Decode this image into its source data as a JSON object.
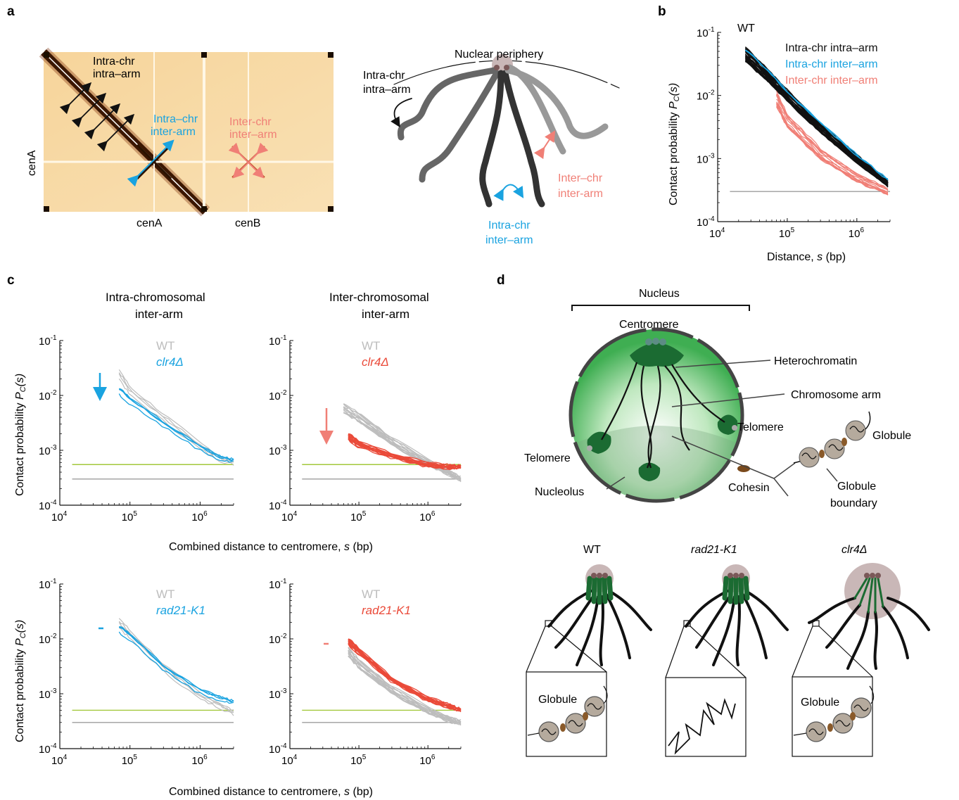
{
  "panels": {
    "a": {
      "label": "a",
      "heatmap": {
        "intra_intra": [
          "Intra-chr",
          "intra–arm"
        ],
        "intra_inter": [
          "Intra–chr",
          "inter-arm"
        ],
        "inter_inter": [
          "Inter-chr",
          "inter–arm"
        ],
        "xlabel_a": "cenA",
        "xlabel_b": "cenB",
        "ylabel": "cenA"
      },
      "schematic": {
        "periphery": "Nuclear periphery",
        "intra_intra": [
          "Intra-chr",
          "intra–arm"
        ],
        "intra_inter": [
          "Intra-chr",
          "inter–arm"
        ],
        "inter_inter": [
          "Inter–chr",
          "inter-arm"
        ]
      }
    },
    "b": {
      "label": "b",
      "strain": "WT",
      "legend": [
        "Intra-chr intra–arm",
        "Intra-chr inter–arm",
        "Inter-chr inter–arm"
      ],
      "ylabel": "Contact probability",
      "ylabel_sym": "P",
      "ylabel_sub": "C",
      "ylabel_arg": "(s)",
      "xlabel": "Distance,",
      "xlabel_sym": "s",
      "xlabel_unit": "(bp)",
      "yticks": [
        "10",
        "10",
        "10",
        "10"
      ],
      "yexp": [
        "-1",
        "-2",
        "-3",
        "-4"
      ],
      "xticks": [
        "10",
        "10",
        "10"
      ],
      "xexp": [
        "4",
        "5",
        "6"
      ]
    },
    "c": {
      "label": "c",
      "col1": [
        "Intra-chromosomal",
        "inter-arm"
      ],
      "col2": [
        "Inter-chromosomal",
        "inter-arm"
      ],
      "ylabel": "Contact probability",
      "ylabel_sym": "P",
      "ylabel_sub": "C",
      "ylabel_arg": "(s)",
      "xlabel": "Combined distance to centromere,",
      "xlabel_sym": "s",
      "xlabel_unit": "(bp)",
      "wt": "WT",
      "mut1": "clr4Δ",
      "mut2": "rad21-K1",
      "yexp": [
        "-1",
        "-2",
        "-3",
        "-4"
      ],
      "xexp": [
        "4",
        "5",
        "6"
      ],
      "tick_base": "10"
    },
    "d": {
      "label": "d",
      "nucleus": "Nucleus",
      "centromere": "Centromere",
      "heterochromatin": "Heterochromatin",
      "chromosome_arm": "Chromosome arm",
      "telomere1": "Telomere",
      "telomere2": "Telomere",
      "globule": "Globule",
      "nucleolus": "Nucleolus",
      "cohesin": "Cohesin",
      "globule_boundary": [
        "Globule",
        "boundary"
      ],
      "strains": [
        "WT",
        "rad21-K1",
        "clr4Δ"
      ],
      "inset_globule": "Globule"
    }
  },
  "colors": {
    "black": "#111111",
    "blue": "#1aa3e0",
    "salmon": "#f07f76",
    "red": "#ea4a39",
    "grey": "#bdbdbd",
    "green": "#a3c83c",
    "darkgreen": "#1b6b32"
  },
  "chart_data": [
    {
      "type": "line",
      "panel": "b",
      "title": "WT",
      "xscale": "log",
      "yscale": "log",
      "xlim": [
        10000,
        3000000
      ],
      "ylim": [
        0.0001,
        0.1
      ],
      "series": [
        {
          "name": "Intra-chr intra–arm",
          "x": [
            25000,
            50000,
            100000,
            300000,
            1000000,
            2800000
          ],
          "y": [
            0.045,
            0.022,
            0.01,
            0.003,
            0.001,
            0.0004
          ]
        },
        {
          "name": "Intra-chr inter–arm",
          "x": [
            25000,
            50000,
            100000,
            300000,
            1000000,
            2800000
          ],
          "y": [
            0.05,
            0.025,
            0.011,
            0.0035,
            0.0011,
            0.00045
          ]
        },
        {
          "name": "Inter-chr inter–arm",
          "x": [
            70000,
            100000,
            300000,
            1000000,
            2800000
          ],
          "y": [
            0.009,
            0.004,
            0.0012,
            0.0005,
            0.0003
          ]
        }
      ],
      "baseline": 0.0003
    },
    {
      "type": "line",
      "panel": "c-intra-clr4",
      "xscale": "log",
      "yscale": "log",
      "xlim": [
        10000,
        3000000
      ],
      "ylim": [
        0.0001,
        0.1
      ],
      "series": [
        {
          "name": "WT",
          "x": [
            70000,
            100000,
            300000,
            1000000,
            2000000,
            3000000
          ],
          "y": [
            0.025,
            0.012,
            0.004,
            0.0012,
            0.0007,
            0.0006
          ]
        },
        {
          "name": "clr4Δ",
          "x": [
            70000,
            100000,
            300000,
            1000000,
            2000000,
            3000000
          ],
          "y": [
            0.012,
            0.008,
            0.003,
            0.0011,
            0.0007,
            0.00065
          ]
        }
      ],
      "baselines": [
        0.00055,
        0.0003
      ]
    },
    {
      "type": "line",
      "panel": "c-inter-clr4",
      "xscale": "log",
      "yscale": "log",
      "xlim": [
        10000,
        3000000
      ],
      "ylim": [
        0.0001,
        0.1
      ],
      "series": [
        {
          "name": "WT",
          "x": [
            60000,
            100000,
            300000,
            1000000,
            2000000,
            3000000
          ],
          "y": [
            0.006,
            0.004,
            0.0015,
            0.0006,
            0.0004,
            0.0003
          ]
        },
        {
          "name": "clr4Δ",
          "x": [
            70000,
            100000,
            300000,
            1000000,
            2000000,
            3000000
          ],
          "y": [
            0.0018,
            0.0013,
            0.0008,
            0.00055,
            0.0005,
            0.0005
          ]
        }
      ],
      "baselines": [
        0.00055,
        0.0003
      ]
    },
    {
      "type": "line",
      "panel": "c-intra-rad21",
      "xscale": "log",
      "yscale": "log",
      "xlim": [
        10000,
        3000000
      ],
      "ylim": [
        0.0001,
        0.1
      ],
      "series": [
        {
          "name": "WT",
          "x": [
            70000,
            100000,
            300000,
            1000000,
            2000000,
            3000000
          ],
          "y": [
            0.02,
            0.012,
            0.003,
            0.0009,
            0.0006,
            0.00045
          ]
        },
        {
          "name": "rad21-K1",
          "x": [
            70000,
            100000,
            300000,
            1000000,
            2000000,
            3000000
          ],
          "y": [
            0.015,
            0.011,
            0.003,
            0.0011,
            0.0008,
            0.0007
          ]
        }
      ],
      "baselines": [
        0.0005,
        0.0003
      ]
    },
    {
      "type": "line",
      "panel": "c-inter-rad21",
      "xscale": "log",
      "yscale": "log",
      "xlim": [
        10000,
        3000000
      ],
      "ylim": [
        0.0001,
        0.1
      ],
      "series": [
        {
          "name": "WT",
          "x": [
            70000,
            100000,
            300000,
            1000000,
            2000000,
            3000000
          ],
          "y": [
            0.006,
            0.0035,
            0.0012,
            0.0005,
            0.00035,
            0.0003
          ]
        },
        {
          "name": "rad21-K1",
          "x": [
            70000,
            100000,
            300000,
            1000000,
            2000000,
            3000000
          ],
          "y": [
            0.009,
            0.006,
            0.0018,
            0.0008,
            0.0006,
            0.0005
          ]
        }
      ],
      "baselines": [
        0.0005,
        0.0003
      ]
    }
  ]
}
